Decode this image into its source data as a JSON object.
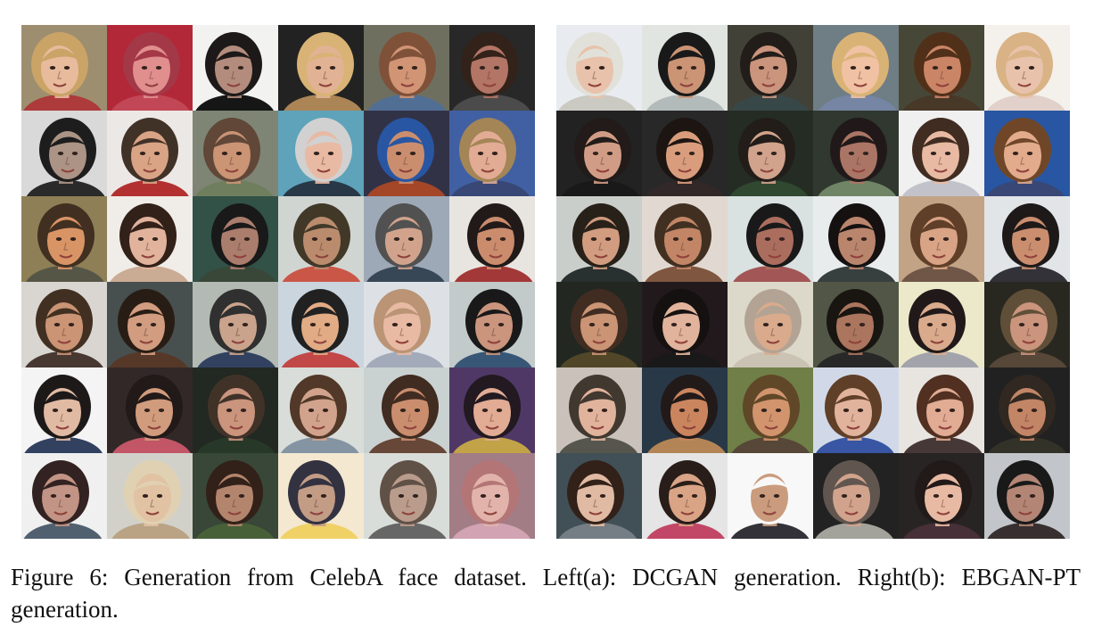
{
  "figure": {
    "caption": "Figure 6: Generation from CelebA face dataset. Left(a): DCGAN generation. Right(b): EBGAN-PT generation.",
    "panels": [
      {
        "id": "left",
        "label": "(a) DCGAN generation",
        "rows": 6,
        "cols": 6,
        "tiles": [
          {
            "bg": "#9a8a6a",
            "skin": "#e8b99a",
            "hair": "#c8a060",
            "shirt": "#a33"
          },
          {
            "bg": "#b02030",
            "skin": "#e08a8a",
            "hair": "#a03040",
            "shirt": "#c04050"
          },
          {
            "bg": "#f2f2f0",
            "skin": "#b08878",
            "hair": "#151010",
            "shirt": "#0d0d0d"
          },
          {
            "bg": "#1a1a1a",
            "skin": "#e0b090",
            "hair": "#d8b070",
            "shirt": "#a88050"
          },
          {
            "bg": "#6a6a5a",
            "skin": "#d09070",
            "hair": "#7a4a30",
            "shirt": "#4a6a90"
          },
          {
            "bg": "#202020",
            "skin": "#b07060",
            "hair": "#2a1a10",
            "shirt": "#444"
          },
          {
            "bg": "#d8d8d8",
            "skin": "#a89080",
            "hair": "#141414",
            "shirt": "#222"
          },
          {
            "bg": "#ece8e4",
            "skin": "#d8a080",
            "hair": "#3a2a20",
            "shirt": "#b02828"
          },
          {
            "bg": "#7a8070",
            "skin": "#c89070",
            "hair": "#5a4030",
            "shirt": "#6a7a58"
          },
          {
            "bg": "#58a0b8",
            "skin": "#e8b8a0",
            "hair": "#d0d0d0",
            "shirt": "#203040"
          },
          {
            "bg": "#2a2a40",
            "skin": "#c88a6a",
            "hair": "#2050a0",
            "shirt": "#a04020"
          },
          {
            "bg": "#3a5aa0",
            "skin": "#e0a890",
            "hair": "#a08050",
            "shirt": "#304070"
          },
          {
            "bg": "#8a7a50",
            "skin": "#d89060",
            "hair": "#3a2818",
            "shirt": "#505040"
          },
          {
            "bg": "#f0ece8",
            "skin": "#e0b098",
            "hair": "#2a1810",
            "shirt": "#c8a890"
          },
          {
            "bg": "#2a4a40",
            "skin": "#a87868",
            "hair": "#101010",
            "shirt": "#304030"
          },
          {
            "bg": "#d0d4d0",
            "skin": "#b88868",
            "hair": "#3a3020",
            "shirt": "#c85040"
          },
          {
            "bg": "#9aa6b4",
            "skin": "#d0a088",
            "hair": "#4a4a4a",
            "shirt": "#304050"
          },
          {
            "bg": "#e8e4e0",
            "skin": "#c88868",
            "hair": "#1a1010",
            "shirt": "#a03030"
          },
          {
            "bg": "#d8d4d0",
            "skin": "#c89070",
            "hair": "#3a2818",
            "shirt": "#40302a"
          },
          {
            "bg": "#404848",
            "skin": "#d0987a",
            "hair": "#20140c",
            "shirt": "#503020"
          },
          {
            "bg": "#b0b8b0",
            "skin": "#c8a088",
            "hair": "#282828",
            "shirt": "#2a3a5a"
          },
          {
            "bg": "#c8d4dc",
            "skin": "#e0a880",
            "hair": "#181818",
            "shirt": "#c04040"
          },
          {
            "bg": "#dce0e4",
            "skin": "#e8b8a0",
            "hair": "#b89070",
            "shirt": "#a0a8b8"
          },
          {
            "bg": "#c0c8c8",
            "skin": "#c89078",
            "hair": "#101010",
            "shirt": "#305070"
          },
          {
            "bg": "#f4f4f4",
            "skin": "#e0b8a0",
            "hair": "#141010",
            "shirt": "#2a3a5a"
          },
          {
            "bg": "#2a2020",
            "skin": "#d09878",
            "hair": "#1a1010",
            "shirt": "#c05060"
          },
          {
            "bg": "#1a201a",
            "skin": "#c89078",
            "hair": "#3a2a20",
            "shirt": "#203020"
          },
          {
            "bg": "#d8dcd8",
            "skin": "#d0a088",
            "hair": "#4a3020",
            "shirt": "#8090a0"
          },
          {
            "bg": "#c8d0d0",
            "skin": "#c88a6a",
            "hair": "#3a2418",
            "shirt": "#604030"
          },
          {
            "bg": "#483060",
            "skin": "#e0a890",
            "hair": "#1a1018",
            "shirt": "#c0a040"
          },
          {
            "bg": "#f0f0f0",
            "skin": "#c09080",
            "hair": "#2a1a18",
            "shirt": "#4a5a6a"
          },
          {
            "bg": "#d0d0c8",
            "skin": "#e0c0a0",
            "hair": "#e0d0b0",
            "shirt": "#b8a080"
          },
          {
            "bg": "#304030",
            "skin": "#b08068",
            "hair": "#2a1810",
            "shirt": "#405a30"
          },
          {
            "bg": "#f4e8d0",
            "skin": "#c09880",
            "hair": "#2a2a3a",
            "shirt": "#f0d060"
          },
          {
            "bg": "#d8dcd8",
            "skin": "#b89888",
            "hair": "#5a4a40",
            "shirt": "#606060"
          },
          {
            "bg": "#a07880",
            "skin": "#e0b0a8",
            "hair": "#b07070",
            "shirt": "#d0a0b0"
          }
        ]
      },
      {
        "id": "right",
        "label": "(b) EBGAN-PT generation",
        "rows": 6,
        "cols": 6,
        "tiles": [
          {
            "bg": "#e8ecf0",
            "skin": "#e8c0a8",
            "hair": "#e0e0d8",
            "shirt": "#c8c8c0"
          },
          {
            "bg": "#e0e4e0",
            "skin": "#c89070",
            "hair": "#101010",
            "shirt": "#b0b8b8"
          },
          {
            "bg": "#3a3a30",
            "skin": "#c89078",
            "hair": "#1a1410",
            "shirt": "#304040"
          },
          {
            "bg": "#6a7880",
            "skin": "#f0c0a0",
            "hair": "#d8b070",
            "shirt": "#7080a0"
          },
          {
            "bg": "#404030",
            "skin": "#c88060",
            "hair": "#4a2810",
            "shirt": "#403020"
          },
          {
            "bg": "#f4f0ec",
            "skin": "#e8c0a8",
            "hair": "#d8b080",
            "shirt": "#e0d0c8"
          },
          {
            "bg": "#1a1a1a",
            "skin": "#d09880",
            "hair": "#1a1210",
            "shirt": "#101010"
          },
          {
            "bg": "#202020",
            "skin": "#d89a78",
            "hair": "#140c08",
            "shirt": "#2a2020"
          },
          {
            "bg": "#1c241c",
            "skin": "#d0a088",
            "hair": "#1a1410",
            "shirt": "#284028"
          },
          {
            "bg": "#283028",
            "skin": "#a87060",
            "hair": "#181010",
            "shirt": "#6a8060"
          },
          {
            "bg": "#f0f0f0",
            "skin": "#e8b8a0",
            "hair": "#3a2418",
            "shirt": "#c0c0c8"
          },
          {
            "bg": "#2050a0",
            "skin": "#e0a888",
            "hair": "#6a4020",
            "shirt": "#304070"
          },
          {
            "bg": "#c8ccc8",
            "skin": "#d0987a",
            "hair": "#201810",
            "shirt": "#202828"
          },
          {
            "bg": "#e0d8d0",
            "skin": "#c08060",
            "hair": "#3a2818",
            "shirt": "#7a5038"
          },
          {
            "bg": "#d8e0e0",
            "skin": "#a86858",
            "hair": "#101010",
            "shirt": "#a05050"
          },
          {
            "bg": "#e8ecec",
            "skin": "#b88068",
            "hair": "#0c0808",
            "shirt": "#303838"
          },
          {
            "bg": "#c0a080",
            "skin": "#d8a080",
            "hair": "#5a3820",
            "shirt": "#6a5040"
          },
          {
            "bg": "#e0e4e8",
            "skin": "#c88a6a",
            "hair": "#141010",
            "shirt": "#2a2a30"
          },
          {
            "bg": "#1a2018",
            "skin": "#c89070",
            "hair": "#3a2418",
            "shirt": "#4a4020"
          },
          {
            "bg": "#1a1014",
            "skin": "#e0b098",
            "hair": "#0c0808",
            "shirt": "#101010"
          },
          {
            "bg": "#dcd8c8",
            "skin": "#d8a888",
            "hair": "#b0a090",
            "shirt": "#c8c0b0"
          },
          {
            "bg": "#4a5040",
            "skin": "#a87058",
            "hair": "#100c08",
            "shirt": "#202020"
          },
          {
            "bg": "#ece8c8",
            "skin": "#d8a888",
            "hair": "#181010",
            "shirt": "#a0a0a8"
          },
          {
            "bg": "#202018",
            "skin": "#c89078",
            "hair": "#5a4830",
            "shirt": "#504030"
          },
          {
            "bg": "#c8c0b8",
            "skin": "#e0b098",
            "hair": "#3a3028",
            "shirt": "#505048"
          },
          {
            "bg": "#203040",
            "skin": "#c88058",
            "hair": "#1a1010",
            "shirt": "#b08050"
          },
          {
            "bg": "#6a7a40",
            "skin": "#d09068",
            "hair": "#5a4020",
            "shirt": "#504030"
          },
          {
            "bg": "#d0d8e8",
            "skin": "#e0b098",
            "hair": "#5a3820",
            "shirt": "#3050a0"
          },
          {
            "bg": "#e8e4e0",
            "skin": "#e0a890",
            "hair": "#4a2818",
            "shirt": "#403030"
          },
          {
            "bg": "#181818",
            "skin": "#c08060",
            "hair": "#282018",
            "shirt": "#2a2a20"
          },
          {
            "bg": "#3a4850",
            "skin": "#e0b8a0",
            "hair": "#2a1810",
            "shirt": "#707880"
          },
          {
            "bg": "#e4e4e4",
            "skin": "#d8a080",
            "hair": "#201410",
            "shirt": "#c04060"
          },
          {
            "bg": "#f8f8f8",
            "skin": "#c89878",
            "hair": "#f8f8f8",
            "shirt": "#2a2a30"
          },
          {
            "bg": "#1a1a1a",
            "skin": "#d0a088",
            "hair": "#5a5048",
            "shirt": "#a0a098"
          },
          {
            "bg": "#201c1c",
            "skin": "#e8b8a0",
            "hair": "#1a1010",
            "shirt": "#402830"
          },
          {
            "bg": "#c0c4c8",
            "skin": "#b08070",
            "hair": "#101010",
            "shirt": "#302828"
          }
        ]
      }
    ]
  }
}
